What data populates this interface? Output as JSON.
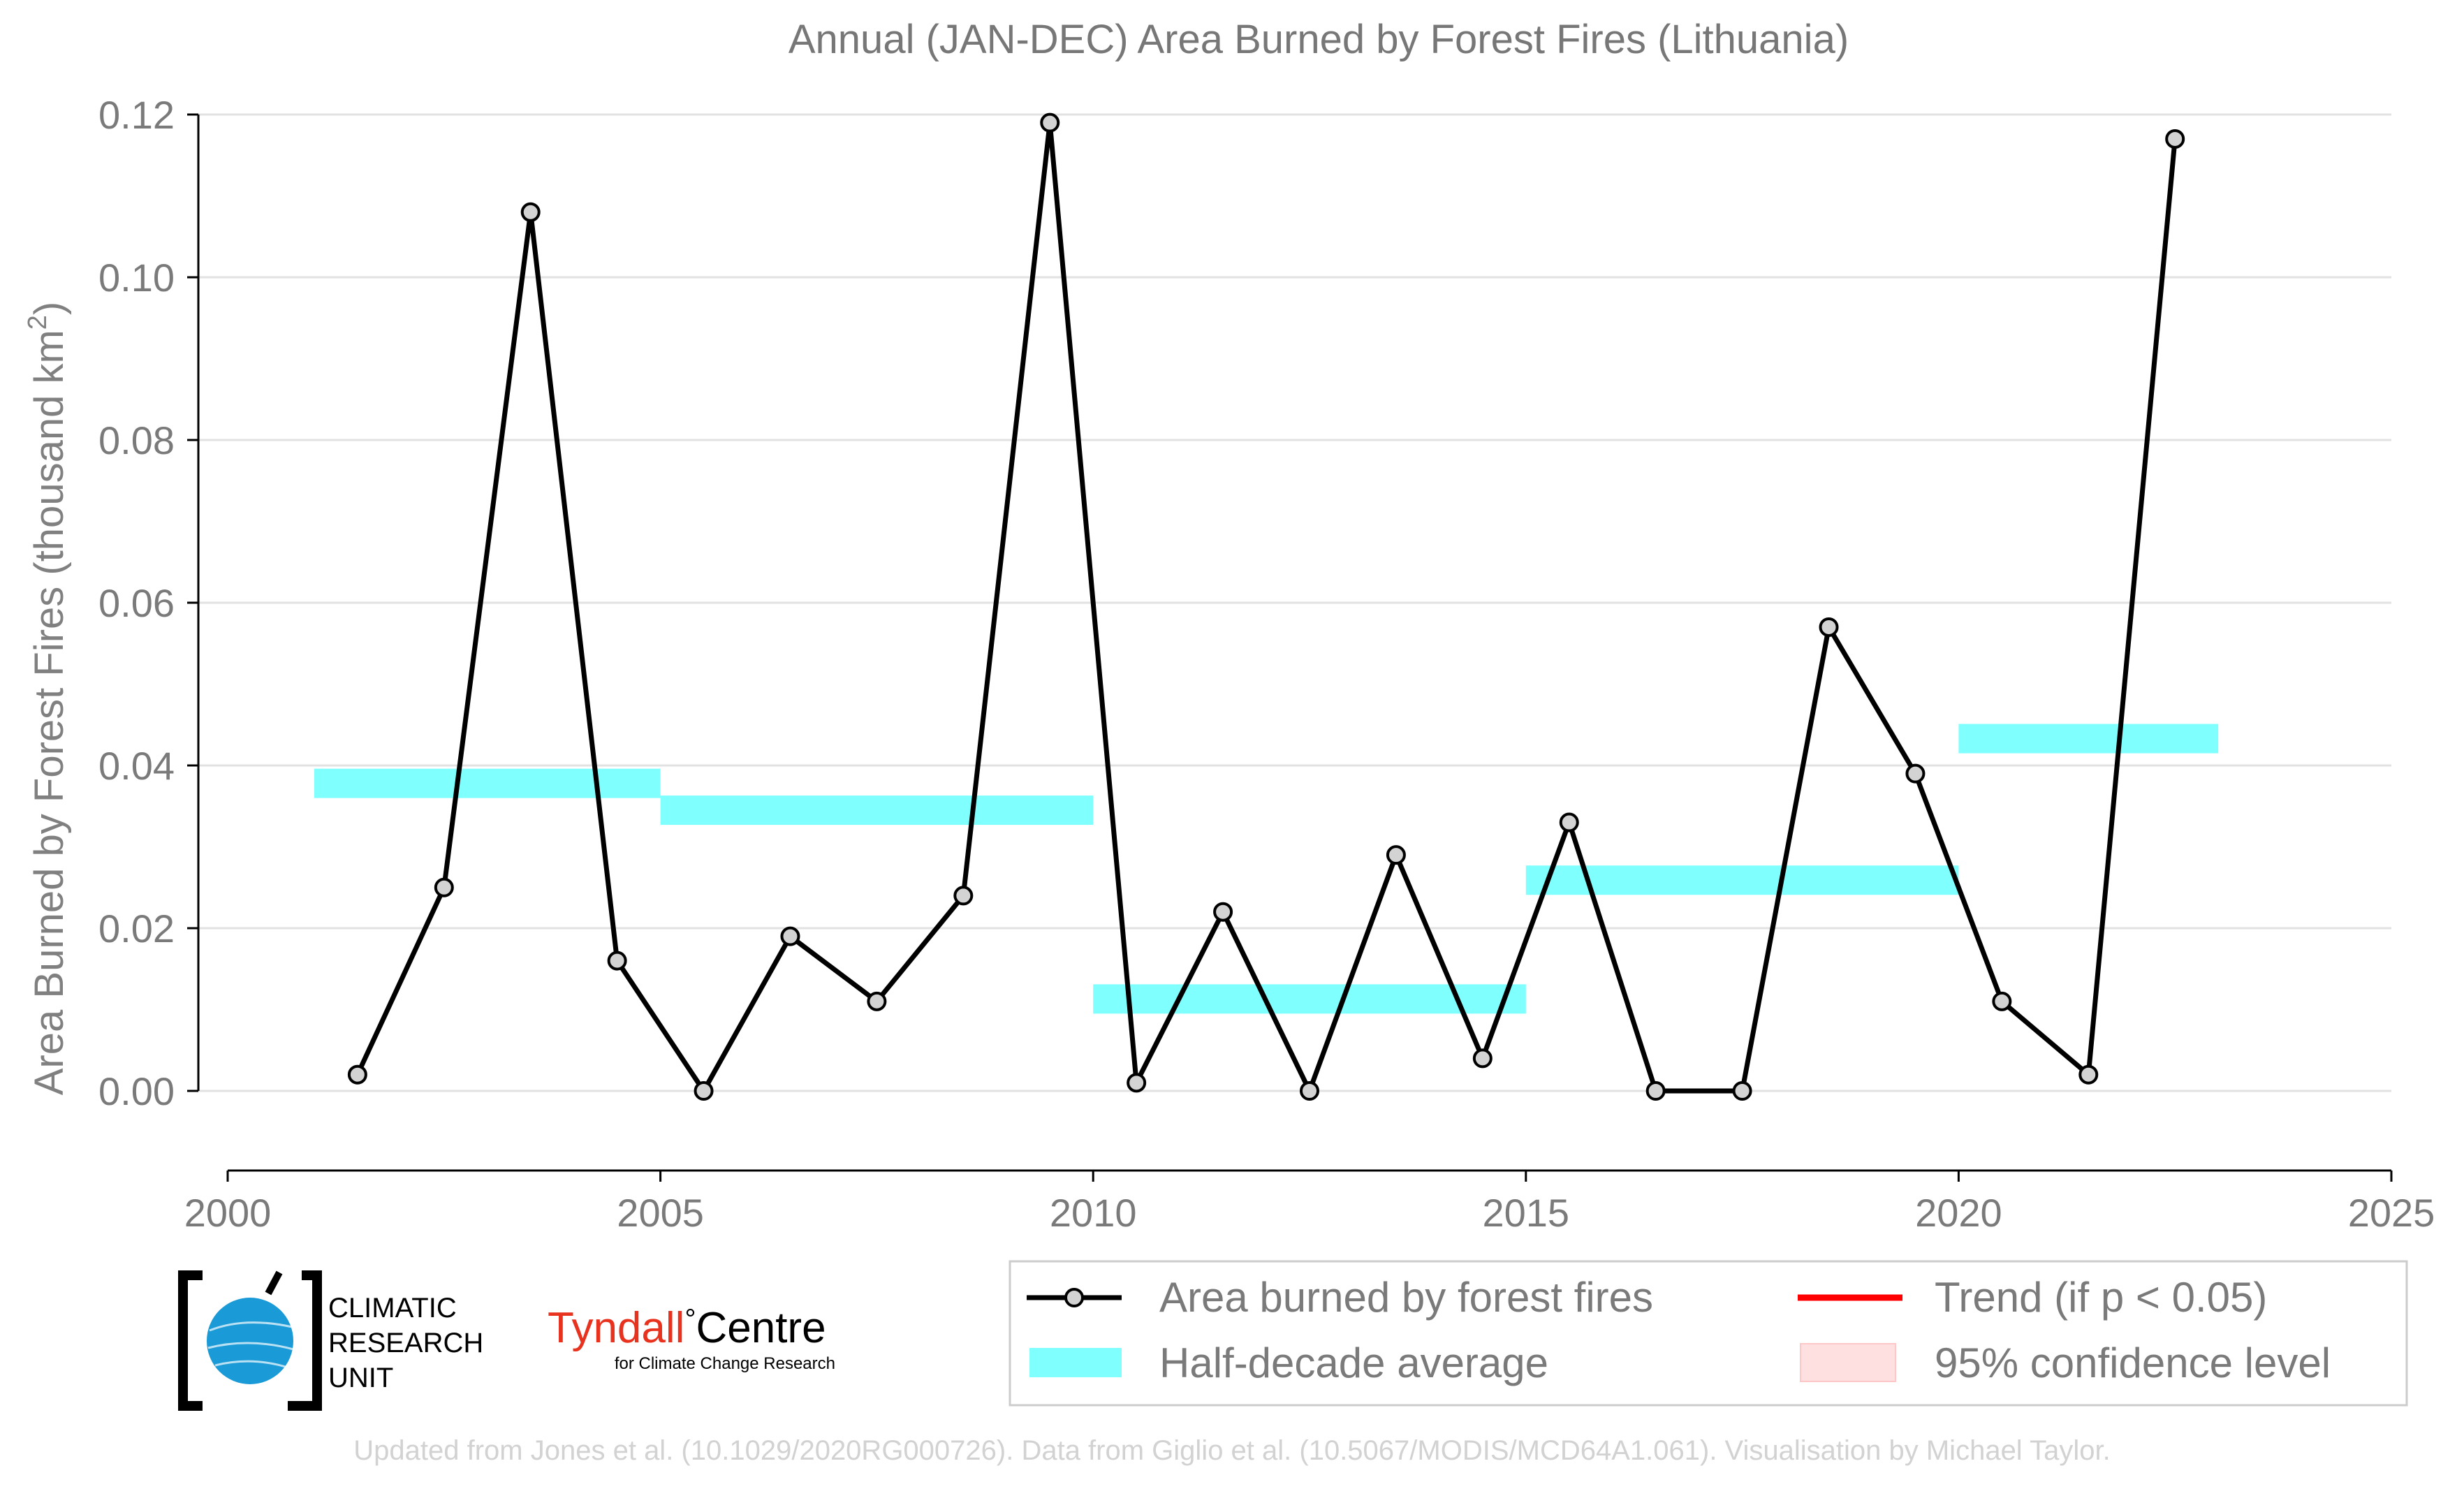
{
  "chart_data": {
    "type": "line",
    "title": "Annual (JAN-DEC) Area Burned by Forest Fires (Lithuania)",
    "ylabel_main": "Area Burned by Forest Fires (thousand km",
    "ylabel_sup": "2",
    "ylabel_end": ")",
    "xlabel": "",
    "xlim": [
      2000,
      2025
    ],
    "ylim": [
      -0.01,
      0.12
    ],
    "x_ticks": [
      2000,
      2005,
      2010,
      2015,
      2020,
      2025
    ],
    "x_tick_labels": [
      "2000",
      "2005",
      "2010",
      "2015",
      "2020",
      "2025"
    ],
    "y_ticks": [
      0.0,
      0.02,
      0.04,
      0.06,
      0.08,
      0.1,
      0.12
    ],
    "y_tick_labels": [
      "0.00",
      "0.02",
      "0.04",
      "0.06",
      "0.08",
      "0.10",
      "0.12"
    ],
    "grid": "horizontal",
    "series": [
      {
        "name": "Area burned by forest fires",
        "color": "#000000",
        "marker_fill": "#d3d3d3",
        "x": [
          2001.5,
          2002.5,
          2003.5,
          2004.5,
          2005.5,
          2006.5,
          2007.5,
          2008.5,
          2009.5,
          2010.5,
          2011.5,
          2012.5,
          2013.5,
          2014.5,
          2015.5,
          2016.5,
          2017.5,
          2018.5,
          2019.5,
          2020.5,
          2021.5,
          2022.5
        ],
        "y": [
          0.002,
          0.025,
          0.108,
          0.016,
          0.0,
          0.019,
          0.011,
          0.024,
          0.119,
          0.001,
          0.022,
          0.0,
          0.029,
          0.004,
          0.033,
          0.0,
          0.0,
          0.057,
          0.039,
          0.011,
          0.002,
          0.117
        ]
      }
    ],
    "half_decade_average": {
      "name": "Half-decade average",
      "color": "#80ffff",
      "segments": [
        {
          "x_start": 2001,
          "x_end": 2005,
          "value": 0.0378
        },
        {
          "x_start": 2005,
          "x_end": 2010,
          "value": 0.0345
        },
        {
          "x_start": 2010,
          "x_end": 2015,
          "value": 0.0113
        },
        {
          "x_start": 2015,
          "x_end": 2020,
          "value": 0.0259
        },
        {
          "x_start": 2020,
          "x_end": 2023,
          "value": 0.0433
        }
      ]
    },
    "legend": {
      "placement": "bottom-right",
      "items": [
        {
          "label": "Area burned by forest fires",
          "kind": "line-marker",
          "color": "#000000"
        },
        {
          "label": "Trend (if p < 0.05)",
          "kind": "line",
          "color": "#ff0000"
        },
        {
          "label": "Half-decade average",
          "kind": "band",
          "color": "#80ffff"
        },
        {
          "label": "95% confidence level",
          "kind": "band",
          "color": "#ffe0e0"
        }
      ]
    },
    "footer": "Updated from Jones et al. (10.1029/2020RG000726). Data from Giglio et al. (10.5067/MODIS/MCD64A1.061). Visualisation by Michael Taylor."
  },
  "logos": {
    "cru_lines": [
      "CLIMATIC",
      "RESEARCH",
      "UNIT"
    ],
    "tyndall_main": "Tyndall",
    "tyndall_degree": "°",
    "tyndall_centre": "Centre",
    "tyndall_sub": "for Climate Change Research",
    "tyndall_color": "#e8321e"
  }
}
